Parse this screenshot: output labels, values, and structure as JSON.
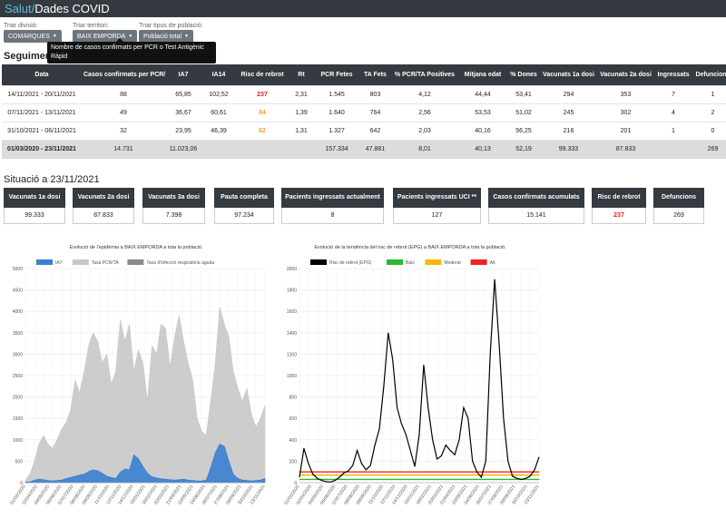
{
  "header": {
    "brand_part1": "Salut/",
    "brand_part2": "Dades COVID"
  },
  "filters": {
    "division": {
      "label": "Triar divisió:",
      "value": "COMARQUES"
    },
    "territory": {
      "label": "Triar territori:",
      "value": "BAIX EMPORDA"
    },
    "population": {
      "label": "Triar tipus de població:",
      "value": "Població total"
    }
  },
  "tooltip": {
    "text": "Nombre de casos confirmats per PCR o Test Antigènic Ràpid"
  },
  "section_title": "Seguiment epidemiològic",
  "table": {
    "headers": [
      "Data",
      "Casos confirmats per PCR/TA",
      "IA7",
      "IA14",
      "Risc de rebrot",
      "Rt",
      "PCR Fetes",
      "TA Fets",
      "% PCR/TA Positives",
      "Mitjana edat",
      "% Dones",
      "Vacunats 1a dosi",
      "Vacunats 2a dosi",
      "Ingressats",
      "Defuncions"
    ],
    "rows": [
      [
        "14/11/2021 - 20/11/2021",
        "88",
        "65,85",
        "102,52",
        "237",
        "2,31",
        "1.545",
        "803",
        "4,12",
        "44,44",
        "53,41",
        "294",
        "353",
        "7",
        "1"
      ],
      [
        "07/11/2021 - 13/11/2021",
        "49",
        "36,67",
        "60,61",
        "84",
        "1,39",
        "1.640",
        "764",
        "2,56",
        "53,53",
        "51,02",
        "245",
        "302",
        "4",
        "2"
      ],
      [
        "31/10/2021 - 06/11/2021",
        "32",
        "23,95",
        "46,39",
        "62",
        "1,31",
        "1.327",
        "642",
        "2,03",
        "40,16",
        "56,25",
        "216",
        "201",
        "1",
        "0"
      ]
    ],
    "total": [
      "01/03/2020 - 23/11/2021",
      "14.731",
      "11.023,06",
      "",
      "",
      "",
      "157.334",
      "47.881",
      "8,01",
      "40,13",
      "52,19",
      "99.333",
      "87.833",
      "",
      "269"
    ]
  },
  "situation": {
    "title": "Situació a 23/11/2021",
    "cards": [
      {
        "label": "Vacunats 1a dosi",
        "value": "99.333"
      },
      {
        "label": "Vacunats 2a dosi",
        "value": "87.833"
      },
      {
        "label": "Vacunats 3a dosi",
        "value": "7.398"
      },
      {
        "label": "Pauta completa",
        "value": "97.234"
      },
      {
        "label": "Pacients ingressats actualment",
        "value": "8"
      },
      {
        "label": "Pacients ingressats UCI **",
        "value": "127"
      },
      {
        "label": "Casos confirmats acumulats",
        "value": "15.141"
      },
      {
        "label": "Risc de rebrot",
        "value": "237"
      },
      {
        "label": "Defuncions",
        "value": "269"
      }
    ]
  },
  "colors": {
    "navbar": "#343a40",
    "accent": "#5bc0de",
    "risk_high": "#e02020",
    "risk_mid": "#f0a020"
  },
  "chart_data": [
    {
      "type": "area",
      "title": "Evolució de l'epidèmia a BAIX EMPORDA a tota la població.",
      "legend": [
        "IA7",
        "Taxa PCR/TA",
        "Taxa d'Infecció respiratòria aguda"
      ],
      "legend_placement": "top",
      "ylim": [
        0,
        5000
      ],
      "yticks": [
        "0",
        "500",
        "1000",
        "1500",
        "2000",
        "2500",
        "3000",
        "3500",
        "4000",
        "4500",
        "5000"
      ],
      "x_range": [
        "01/03/2020",
        "23/11/2021"
      ],
      "series": [
        {
          "name": "Taxa PCR/TA",
          "color": "#c8c8c8",
          "values": [
            50,
            200,
            500,
            900,
            1100,
            900,
            800,
            1000,
            1250,
            1400,
            1700,
            2400,
            2100,
            2600,
            3200,
            3500,
            3300,
            2800,
            3000,
            2300,
            2600,
            3800,
            3300,
            3700,
            2600,
            3100,
            2800,
            1900,
            3200,
            3000,
            3700,
            3600,
            2700,
            3400,
            3900,
            3300,
            2800,
            2400,
            1500,
            1200,
            1100,
            1900,
            2800,
            4100,
            3700,
            3400,
            2600,
            2200,
            1900,
            2200,
            1600,
            1300,
            1500,
            1800
          ]
        },
        {
          "name": "IA7",
          "color": "#3b7fd0",
          "values": [
            10,
            20,
            60,
            80,
            70,
            50,
            40,
            50,
            60,
            100,
            120,
            150,
            180,
            200,
            260,
            300,
            280,
            220,
            150,
            120,
            100,
            250,
            320,
            300,
            650,
            560,
            380,
            220,
            140,
            110,
            90,
            80,
            70,
            60,
            70,
            80,
            60,
            50,
            40,
            40,
            60,
            350,
            700,
            900,
            850,
            500,
            200,
            100,
            60,
            50,
            40,
            50,
            60,
            100
          ]
        },
        {
          "name": "Taxa d'Infecció respiratòria aguda",
          "color": "#8a8a8a",
          "values": []
        }
      ]
    },
    {
      "type": "line",
      "title": "Evolució de la tendència del risc de rebrot (EPG) a BAIX EMPORDA a tota la població.",
      "legend": [
        "Risc de rebrot (EPG)",
        "Baix",
        "Moderat",
        "Alt"
      ],
      "legend_placement": "top",
      "ylim": [
        0,
        2000
      ],
      "yticks": [
        "0",
        "200",
        "400",
        "600",
        "800",
        "1000",
        "1200",
        "1400",
        "1600",
        "1800",
        "2000"
      ],
      "thresholds": [
        {
          "name": "Baix",
          "value": 30,
          "color": "#22bb33"
        },
        {
          "name": "Moderat",
          "value": 70,
          "color": "#f5b800"
        },
        {
          "name": "Alt",
          "value": 100,
          "color": "#ee2222"
        }
      ],
      "series": [
        {
          "name": "Risc de rebrot (EPG)",
          "color": "#000000",
          "values": [
            50,
            320,
            180,
            80,
            40,
            20,
            10,
            5,
            20,
            50,
            90,
            110,
            160,
            300,
            180,
            120,
            160,
            350,
            500,
            900,
            1400,
            1150,
            700,
            550,
            450,
            300,
            150,
            450,
            1100,
            700,
            400,
            220,
            250,
            350,
            300,
            260,
            400,
            700,
            600,
            200,
            100,
            50,
            200,
            1200,
            1900,
            1300,
            600,
            200,
            60,
            40,
            30,
            40,
            60,
            120,
            240
          ]
        }
      ]
    }
  ]
}
